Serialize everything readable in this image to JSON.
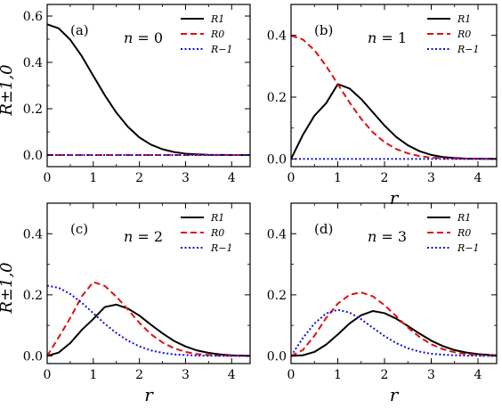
{
  "chart_data": [
    {
      "type": "line",
      "panel_label": "(a)",
      "annotation": {
        "symbol": "n",
        "value": "= 0"
      },
      "ylabel": "R±1,0",
      "xlabel": "",
      "xlim": [
        0,
        4.4
      ],
      "ylim": [
        -0.05,
        0.65
      ],
      "xticks": [
        "0",
        "1",
        "2",
        "3",
        "4"
      ],
      "xtick_values": [
        0,
        1,
        2,
        3,
        4
      ],
      "yticks": [
        "0.0",
        "0.2",
        "0.4",
        "0.6"
      ],
      "ytick_values": [
        0,
        0.2,
        0.4,
        0.6
      ],
      "legend_position": "top-right",
      "x": [
        0,
        0.25,
        0.5,
        0.75,
        1,
        1.25,
        1.5,
        1.75,
        2,
        2.25,
        2.5,
        2.75,
        3,
        3.25,
        3.5,
        3.75,
        4,
        4.25,
        4.4
      ],
      "series": [
        {
          "name": "R1",
          "style": "solid",
          "color": "#000000",
          "values": [
            0.564,
            0.547,
            0.498,
            0.427,
            0.342,
            0.258,
            0.183,
            0.122,
            0.076,
            0.045,
            0.025,
            0.013,
            0.006,
            0.003,
            0.001,
            0.0005,
            0.0002,
            0.0001,
            0.0
          ]
        },
        {
          "name": "R0",
          "style": "dashed",
          "color": "#dd1111",
          "values": [
            0,
            0,
            0,
            0,
            0,
            0,
            0,
            0,
            0,
            0,
            0,
            0,
            0,
            0,
            0,
            0,
            0,
            0,
            0
          ]
        },
        {
          "name": "R−1",
          "style": "dotted",
          "color": "#1111dd",
          "values": [
            0,
            0,
            0,
            0,
            0,
            0,
            0,
            0,
            0,
            0,
            0,
            0,
            0,
            0,
            0,
            0,
            0,
            0,
            0
          ]
        }
      ]
    },
    {
      "type": "line",
      "panel_label": "(b)",
      "annotation": {
        "symbol": "n",
        "value": "= 1"
      },
      "ylabel": "",
      "xlabel": "r",
      "xlim": [
        0,
        4.4
      ],
      "ylim": [
        -0.025,
        0.5
      ],
      "xticks": [
        "0",
        "1",
        "2",
        "3",
        "4"
      ],
      "xtick_values": [
        0,
        1,
        2,
        3,
        4
      ],
      "yticks": [
        "0.0",
        "0.2",
        "0.4"
      ],
      "ytick_values": [
        0,
        0.2,
        0.4
      ],
      "legend_position": "top-right",
      "x": [
        0,
        0.25,
        0.5,
        0.75,
        1,
        1.25,
        1.5,
        1.75,
        2,
        2.25,
        2.5,
        2.75,
        3,
        3.25,
        3.5,
        3.75,
        4,
        4.25,
        4.4
      ],
      "series": [
        {
          "name": "R1",
          "style": "solid",
          "color": "#000000",
          "values": [
            0,
            0.077,
            0.14,
            0.18,
            0.242,
            0.228,
            0.194,
            0.151,
            0.108,
            0.071,
            0.044,
            0.025,
            0.013,
            0.006,
            0.003,
            0.001,
            0.0005,
            0.0002,
            0.0001
          ]
        },
        {
          "name": "R0",
          "style": "dashed",
          "color": "#dd1111",
          "values": [
            0.399,
            0.387,
            0.352,
            0.301,
            0.242,
            0.183,
            0.13,
            0.086,
            0.054,
            0.032,
            0.018,
            0.009,
            0.004,
            0.002,
            0.001,
            0.0004,
            0.0001,
            0.0,
            0.0
          ]
        },
        {
          "name": "R−1",
          "style": "dotted",
          "color": "#1111dd",
          "values": [
            0,
            0,
            0,
            0,
            0,
            0,
            0,
            0,
            0,
            0,
            0,
            0,
            0,
            0,
            0,
            0,
            0,
            0,
            0
          ]
        }
      ]
    },
    {
      "type": "line",
      "panel_label": "(c)",
      "annotation": {
        "symbol": "n",
        "value": "= 2"
      },
      "ylabel": "R±1,0",
      "xlabel": "r",
      "xlim": [
        0,
        4.4
      ],
      "ylim": [
        -0.025,
        0.5
      ],
      "xticks": [
        "0",
        "1",
        "2",
        "3",
        "4"
      ],
      "xtick_values": [
        0,
        1,
        2,
        3,
        4
      ],
      "yticks": [
        "0.0",
        "0.2",
        "0.4"
      ],
      "ytick_values": [
        0,
        0.2,
        0.4
      ],
      "legend_position": "top-right",
      "x": [
        0,
        0.25,
        0.5,
        0.75,
        1,
        1.25,
        1.5,
        1.75,
        2,
        2.25,
        2.5,
        2.75,
        3,
        3.25,
        3.5,
        3.75,
        4,
        4.25,
        4.4
      ],
      "series": [
        {
          "name": "R1",
          "style": "solid",
          "color": "#000000",
          "values": [
            0,
            0.011,
            0.042,
            0.085,
            0.121,
            0.16,
            0.168,
            0.155,
            0.132,
            0.102,
            0.074,
            0.049,
            0.031,
            0.018,
            0.01,
            0.005,
            0.002,
            0.001,
            0.0005
          ]
        },
        {
          "name": "R0",
          "style": "dashed",
          "color": "#dd1111",
          "values": [
            0,
            0.061,
            0.124,
            0.195,
            0.242,
            0.229,
            0.194,
            0.152,
            0.108,
            0.071,
            0.044,
            0.025,
            0.013,
            0.006,
            0.003,
            0.001,
            0.0005,
            0.0002,
            0.0001
          ]
        },
        {
          "name": "R−1",
          "style": "dotted",
          "color": "#1111dd",
          "values": [
            0.23,
            0.223,
            0.203,
            0.174,
            0.14,
            0.105,
            0.075,
            0.05,
            0.031,
            0.018,
            0.01,
            0.005,
            0.003,
            0.001,
            0.0005,
            0.0002,
            0.0001,
            0.0,
            0.0
          ]
        }
      ]
    },
    {
      "type": "line",
      "panel_label": "(d)",
      "annotation": {
        "symbol": "n",
        "value": "= 3"
      },
      "ylabel": "",
      "xlabel": "r",
      "xlim": [
        0,
        4.4
      ],
      "ylim": [
        -0.025,
        0.5
      ],
      "xticks": [
        "0",
        "1",
        "2",
        "3",
        "4"
      ],
      "xtick_values": [
        0,
        1,
        2,
        3,
        4
      ],
      "yticks": [
        "0.0",
        "0.2",
        "0.4"
      ],
      "ytick_values": [
        0,
        0.2,
        0.4
      ],
      "legend_position": "top-right",
      "x": [
        0,
        0.25,
        0.5,
        0.75,
        1,
        1.25,
        1.5,
        1.75,
        2,
        2.25,
        2.5,
        2.75,
        3,
        3.25,
        3.5,
        3.75,
        4,
        4.25,
        4.4
      ],
      "series": [
        {
          "name": "R1",
          "style": "solid",
          "color": "#000000",
          "values": [
            0,
            0.002,
            0.013,
            0.037,
            0.07,
            0.106,
            0.133,
            0.147,
            0.14,
            0.122,
            0.098,
            0.073,
            0.05,
            0.032,
            0.019,
            0.011,
            0.006,
            0.003,
            0.002
          ]
        },
        {
          "name": "R0",
          "style": "dashed",
          "color": "#dd1111",
          "values": [
            0,
            0.019,
            0.066,
            0.124,
            0.171,
            0.2,
            0.208,
            0.195,
            0.166,
            0.13,
            0.093,
            0.062,
            0.038,
            0.022,
            0.012,
            0.006,
            0.003,
            0.001,
            0.0007
          ]
        },
        {
          "name": "R−1",
          "style": "dotted",
          "color": "#1111dd",
          "values": [
            0,
            0.058,
            0.106,
            0.139,
            0.151,
            0.142,
            0.12,
            0.092,
            0.065,
            0.042,
            0.025,
            0.014,
            0.007,
            0.004,
            0.002,
            0.001,
            0.0004,
            0.0002,
            0.0001
          ]
        }
      ]
    }
  ]
}
